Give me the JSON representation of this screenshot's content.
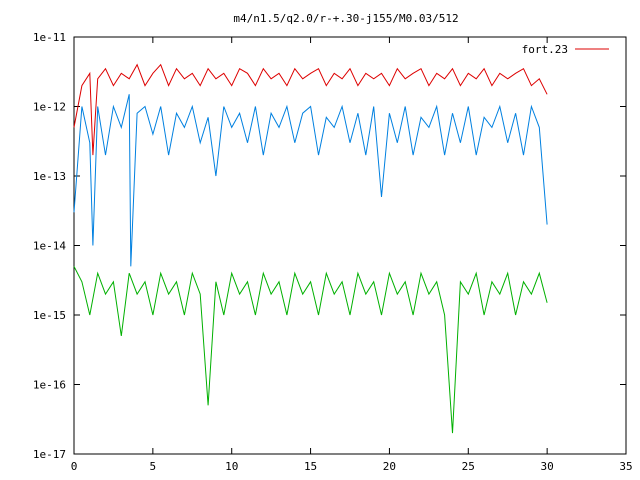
{
  "chart_data": {
    "type": "line",
    "title": "m4/n1.5/q2.0/r-+.30-j155/M0.03/512",
    "xlabel": "",
    "ylabel": "",
    "xlim": [
      0,
      35
    ],
    "ylim": [
      1e-17,
      1e-11
    ],
    "yscale": "log",
    "grid": false,
    "legend_position": "top-right",
    "x_ticks": [
      0,
      5,
      10,
      15,
      20,
      25,
      30,
      35
    ],
    "x_tick_labels": [
      "0",
      "5",
      "10",
      "15",
      "20",
      "25",
      "30",
      "35"
    ],
    "y_ticks": [
      1e-17,
      1e-16,
      1e-15,
      1e-14,
      1e-13,
      1e-12,
      1e-11
    ],
    "y_tick_labels": [
      "1e-17",
      "1e-16",
      "1e-15",
      "1e-14",
      "1e-13",
      "1e-12",
      "1e-11"
    ],
    "legend_label": "fort.23",
    "series": [
      {
        "name": "fort.23",
        "color": "#dd0000",
        "x": [
          0,
          0.5,
          1,
          1.2,
          1.5,
          2,
          2.5,
          3,
          3.5,
          4,
          4.5,
          5,
          5.5,
          6,
          6.5,
          7,
          7.5,
          8,
          8.5,
          9,
          9.5,
          10,
          10.5,
          11,
          11.5,
          12,
          12.5,
          13,
          13.5,
          14,
          14.5,
          15,
          15.5,
          16,
          16.5,
          17,
          17.5,
          18,
          18.5,
          19,
          19.5,
          20,
          20.5,
          21,
          21.5,
          22,
          22.5,
          23,
          23.5,
          24,
          24.5,
          25,
          25.5,
          26,
          26.5,
          27,
          27.5,
          28,
          28.5,
          29,
          29.5,
          30
        ],
        "y": [
          5e-13,
          2e-12,
          3e-12,
          2e-13,
          2.5e-12,
          3.5e-12,
          2e-12,
          3e-12,
          2.5e-12,
          4e-12,
          2e-12,
          3e-12,
          4e-12,
          2e-12,
          3.5e-12,
          2.5e-12,
          3e-12,
          2e-12,
          3.5e-12,
          2.5e-12,
          3e-12,
          2e-12,
          3.5e-12,
          3e-12,
          2e-12,
          3.5e-12,
          2.5e-12,
          3e-12,
          2e-12,
          3.5e-12,
          2.5e-12,
          3e-12,
          3.5e-12,
          2e-12,
          3e-12,
          2.5e-12,
          3.5e-12,
          2e-12,
          3e-12,
          2.5e-12,
          3e-12,
          2e-12,
          3.5e-12,
          2.5e-12,
          3e-12,
          3.5e-12,
          2e-12,
          3e-12,
          2.5e-12,
          3.5e-12,
          2e-12,
          3e-12,
          2.5e-12,
          3.5e-12,
          2e-12,
          3e-12,
          2.5e-12,
          3e-12,
          3.5e-12,
          2e-12,
          2.5e-12,
          1.5e-12
        ]
      },
      {
        "name": "",
        "color": "#0080e0",
        "x": [
          0,
          0.5,
          1,
          1.2,
          1.5,
          2,
          2.5,
          3,
          3.5,
          3.6,
          4,
          4.5,
          5,
          5.5,
          6,
          6.5,
          7,
          7.5,
          8,
          8.5,
          9,
          9.5,
          10,
          10.5,
          11,
          11.5,
          12,
          12.5,
          13,
          13.5,
          14,
          14.5,
          15,
          15.5,
          16,
          16.5,
          17,
          17.5,
          18,
          18.5,
          19,
          19.5,
          20,
          20.5,
          21,
          21.5,
          22,
          22.5,
          23,
          23.5,
          24,
          24.5,
          25,
          25.5,
          26,
          26.5,
          27,
          27.5,
          28,
          28.5,
          29,
          29.5,
          30
        ],
        "y": [
          3e-14,
          1e-12,
          3e-13,
          1e-14,
          1e-12,
          2e-13,
          1e-12,
          5e-13,
          1.5e-12,
          5e-15,
          8e-13,
          1e-12,
          4e-13,
          1e-12,
          2e-13,
          8e-13,
          5e-13,
          1e-12,
          3e-13,
          7e-13,
          1e-13,
          1e-12,
          5e-13,
          8e-13,
          3e-13,
          1e-12,
          2e-13,
          8e-13,
          5e-13,
          1e-12,
          3e-13,
          8e-13,
          1e-12,
          2e-13,
          7e-13,
          5e-13,
          1e-12,
          3e-13,
          8e-13,
          2e-13,
          1e-12,
          5e-14,
          8e-13,
          3e-13,
          1e-12,
          2e-13,
          7e-13,
          5e-13,
          1e-12,
          2e-13,
          8e-13,
          3e-13,
          1e-12,
          2e-13,
          7e-13,
          5e-13,
          1e-12,
          3e-13,
          8e-13,
          2e-13,
          1e-12,
          5e-13,
          2e-14
        ]
      },
      {
        "name": "",
        "color": "#00b000",
        "x": [
          0,
          0.5,
          1,
          1.5,
          2,
          2.5,
          3,
          3.5,
          4,
          4.5,
          5,
          5.5,
          6,
          6.5,
          7,
          7.5,
          8,
          8.5,
          9,
          9.5,
          10,
          10.5,
          11,
          11.5,
          12,
          12.5,
          13,
          13.5,
          14,
          14.5,
          15,
          15.5,
          16,
          16.5,
          17,
          17.5,
          18,
          18.5,
          19,
          19.5,
          20,
          20.5,
          21,
          21.5,
          22,
          22.5,
          23,
          23.5,
          24,
          24.5,
          25,
          25.5,
          26,
          26.5,
          27,
          27.5,
          28,
          28.5,
          29,
          29.5,
          30
        ],
        "y": [
          5e-15,
          3e-15,
          1e-15,
          4e-15,
          2e-15,
          3e-15,
          5e-16,
          4e-15,
          2e-15,
          3e-15,
          1e-15,
          4e-15,
          2e-15,
          3e-15,
          1e-15,
          4e-15,
          2e-15,
          5e-17,
          3e-15,
          1e-15,
          4e-15,
          2e-15,
          3e-15,
          1e-15,
          4e-15,
          2e-15,
          3e-15,
          1e-15,
          4e-15,
          2e-15,
          3e-15,
          1e-15,
          4e-15,
          2e-15,
          3e-15,
          1e-15,
          4e-15,
          2e-15,
          3e-15,
          1e-15,
          4e-15,
          2e-15,
          3e-15,
          1e-15,
          4e-15,
          2e-15,
          3e-15,
          1e-15,
          2e-17,
          3e-15,
          2e-15,
          4e-15,
          1e-15,
          3e-15,
          2e-15,
          4e-15,
          1e-15,
          3e-15,
          2e-15,
          4e-15,
          1.5e-15
        ]
      }
    ]
  }
}
